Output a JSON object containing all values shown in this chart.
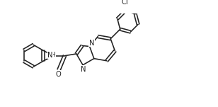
{
  "bg": "#ffffff",
  "lc": "#222222",
  "lw": 1.15,
  "fs": 7.2,
  "fig_w": 3.08,
  "fig_h": 1.51,
  "dpi": 100,
  "xlim": [
    0,
    9.5
  ],
  "ylim": [
    0,
    4.8
  ]
}
